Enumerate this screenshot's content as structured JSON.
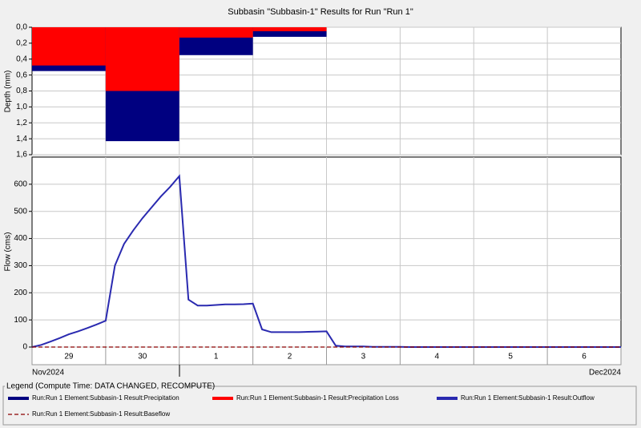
{
  "title": "Subbasin \"Subbasin-1\" Results for Run \"Run 1\"",
  "legend_title": "Legend (Compute Time: DATA CHANGED, RECOMPUTE)",
  "chart_data": [
    {
      "type": "bar",
      "ylabel": "Depth (mm)",
      "y_inverted": true,
      "grid": true,
      "categories": [
        "29",
        "30",
        "1",
        "2",
        "3",
        "4",
        "5",
        "6"
      ],
      "series": [
        {
          "name": "Run:Run 1 Element:Subbasin-1 Result:Precipitation",
          "color": "#000080",
          "values": [
            0.55,
            1.43,
            0.35,
            0.12,
            0,
            0,
            0,
            0
          ]
        },
        {
          "name": "Run:Run 1 Element:Subbasin-1 Result:Precipitation Loss",
          "color": "#ff0000",
          "values": [
            0.48,
            0.8,
            0.13,
            0.05,
            0,
            0,
            0,
            0
          ]
        }
      ],
      "ylim": [
        0,
        1.6
      ],
      "yticks": [
        {
          "value": 0,
          "label": "0,0"
        },
        {
          "value": 0.2,
          "label": "0,2"
        },
        {
          "value": 0.4,
          "label": "0,4"
        },
        {
          "value": 0.6,
          "label": "0,6"
        },
        {
          "value": 0.8,
          "label": "0,8"
        },
        {
          "value": 1.0,
          "label": "1,0"
        },
        {
          "value": 1.2,
          "label": "1,2"
        },
        {
          "value": 1.4,
          "label": "1,4"
        },
        {
          "value": 1.6,
          "label": "1,6"
        }
      ]
    },
    {
      "type": "line",
      "ylabel": "Flow (cms)",
      "grid": true,
      "x_axis_labels": [
        "Nov2024",
        "Dec2024"
      ],
      "series": [
        {
          "name": "Run:Run 1 Element:Subbasin-1 Result:Outflow",
          "color": "#2a2ab0",
          "values": [
            0,
            8,
            20,
            33,
            47,
            58,
            70,
            83,
            97,
            300,
            380,
            430,
            475,
            515,
            555,
            590,
            630,
            175,
            153,
            153,
            155,
            157,
            157,
            158,
            160,
            65,
            55,
            55,
            55,
            55,
            56,
            57,
            58,
            5,
            2,
            2,
            2,
            1,
            1,
            1,
            1,
            0,
            0,
            0,
            0,
            0,
            0,
            0,
            0,
            0,
            0,
            0,
            0,
            0,
            0,
            0,
            0,
            0,
            0,
            0,
            0,
            0,
            0,
            0,
            0
          ]
        },
        {
          "name": "Run:Run 1 Element:Subbasin-1 Result:Baseflow",
          "color": "#8b0000",
          "dashed": true,
          "values": [
            0,
            0
          ]
        }
      ],
      "ylim": [
        0,
        700
      ],
      "yticks": [
        0,
        100,
        200,
        300,
        400,
        500,
        600
      ]
    }
  ]
}
